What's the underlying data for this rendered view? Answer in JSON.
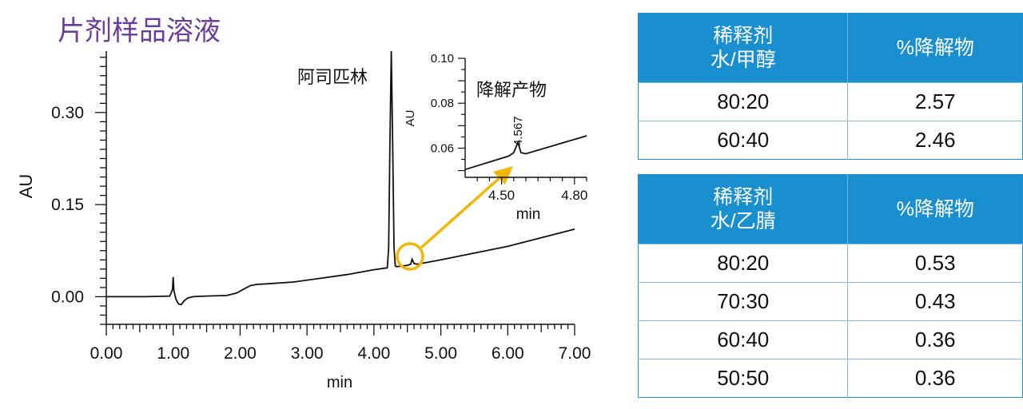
{
  "chart_data": {
    "type": "line",
    "title": "片剂样品溶液",
    "xlabel": "min",
    "ylabel": "AU",
    "xlim": [
      0,
      7
    ],
    "ylim": [
      -0.045,
      0.4
    ],
    "x_ticks": [
      "0.00",
      "1.00",
      "2.00",
      "3.00",
      "4.00",
      "5.00",
      "6.00",
      "7.00"
    ],
    "y_ticks": [
      "0.00",
      "0.15",
      "0.30"
    ],
    "series": [
      {
        "x": [
          0.0,
          0.6,
          0.95,
          0.99,
          1.0,
          1.01,
          1.04,
          1.08,
          1.12,
          1.16,
          1.22,
          1.3,
          1.5,
          1.8,
          1.95,
          2.05,
          2.15,
          2.25,
          2.4,
          2.8,
          3.2,
          3.6,
          4.0,
          4.2,
          4.22,
          4.24,
          4.26,
          4.28,
          4.3,
          4.32,
          4.34,
          4.5,
          4.55,
          4.57,
          4.6,
          4.65,
          5.0,
          6.0,
          7.0
        ],
        "y": [
          0.0,
          0.0,
          0.001,
          0.012,
          0.032,
          0.01,
          -0.004,
          -0.012,
          -0.013,
          -0.007,
          -0.002,
          0.0,
          0.001,
          0.002,
          0.006,
          0.012,
          0.018,
          0.02,
          0.021,
          0.024,
          0.03,
          0.036,
          0.044,
          0.047,
          0.08,
          0.25,
          0.4,
          0.25,
          0.08,
          0.05,
          0.049,
          0.051,
          0.053,
          0.061,
          0.054,
          0.053,
          0.06,
          0.082,
          0.11
        ]
      }
    ],
    "annotations": [
      {
        "text": "阿司匹林",
        "x": 4.27
      },
      {
        "text": "降解产物",
        "x": 4.567
      }
    ],
    "inset": {
      "title": "降解产物",
      "xlabel": "min",
      "ylabel": "AU",
      "xlim": [
        4.35,
        4.85
      ],
      "ylim": [
        0.047,
        0.1
      ],
      "x_ticks": [
        "4.50",
        "4.80"
      ],
      "y_ticks": [
        "0.06",
        "0.08",
        "0.10"
      ],
      "peak_label": "4.567",
      "series": [
        {
          "x": [
            4.35,
            4.5,
            4.53,
            4.55,
            4.567,
            4.58,
            4.6,
            4.85
          ],
          "y": [
            0.0505,
            0.0555,
            0.0565,
            0.058,
            0.0625,
            0.058,
            0.0575,
            0.0655
          ]
        }
      ]
    }
  },
  "tables": [
    {
      "header": [
        "稀释剂",
        "水/甲醇",
        "%降解物"
      ],
      "rows": [
        [
          "80:20",
          "2.57"
        ],
        [
          "60:40",
          "2.46"
        ]
      ]
    },
    {
      "header": [
        "稀释剂",
        "水/乙腈",
        "%降解物"
      ],
      "rows": [
        [
          "80:20",
          "0.53"
        ],
        [
          "70:30",
          "0.43"
        ],
        [
          "60:40",
          "0.36"
        ],
        [
          "50:50",
          "0.36"
        ]
      ]
    }
  ],
  "colors": {
    "title": "#6a3d9a",
    "header_bg": "#1a8fd0",
    "arrow": "#f2b705",
    "trace": "#111111"
  }
}
